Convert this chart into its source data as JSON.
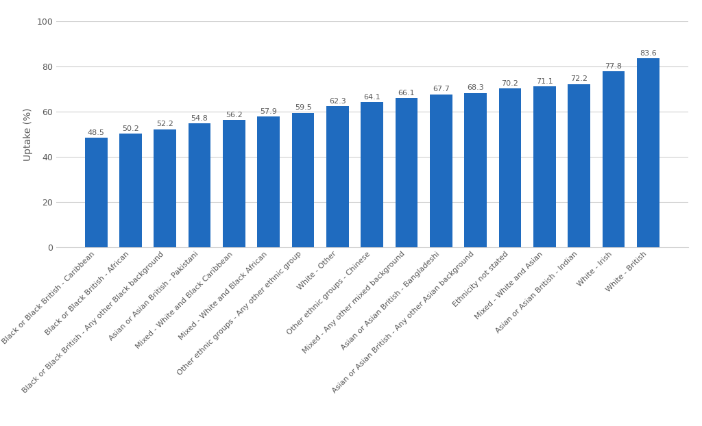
{
  "categories": [
    "Black or Black British - Caribbean",
    "Black or Black British - African",
    "Black or Black British - Any other Black background",
    "Asian or Asian British - Pakistani",
    "Mixed - White and Black Caribbean",
    "Mixed - White and Black African",
    "Other ethnic groups - Any other ethnic group",
    "White - Other",
    "Other ethnic groups - Chinese",
    "Mixed - Any other mixed background",
    "Asian or Asian British - Bangladeshi",
    "Asian or Asian British - Any other Asian background",
    "Ethnicity not stated",
    "Mixed - White and Asian",
    "Asian or Asian British - Indian",
    "White - Irish",
    "White - British"
  ],
  "values": [
    48.5,
    50.2,
    52.2,
    54.8,
    56.2,
    57.9,
    59.5,
    62.3,
    64.1,
    66.1,
    67.7,
    68.3,
    70.2,
    71.1,
    72.2,
    77.8,
    83.6
  ],
  "bar_color": "#1f6bbf",
  "ylabel": "Uptake (%)",
  "ylim": [
    0,
    100
  ],
  "yticks": [
    0,
    20,
    40,
    60,
    80,
    100
  ],
  "label_fontsize": 8.0,
  "value_fontsize": 8.0,
  "ylabel_fontsize": 10,
  "tick_fontsize": 9,
  "value_color": "#595959",
  "label_color": "#595959",
  "background_color": "#ffffff",
  "grid_color": "#d0d0d0"
}
